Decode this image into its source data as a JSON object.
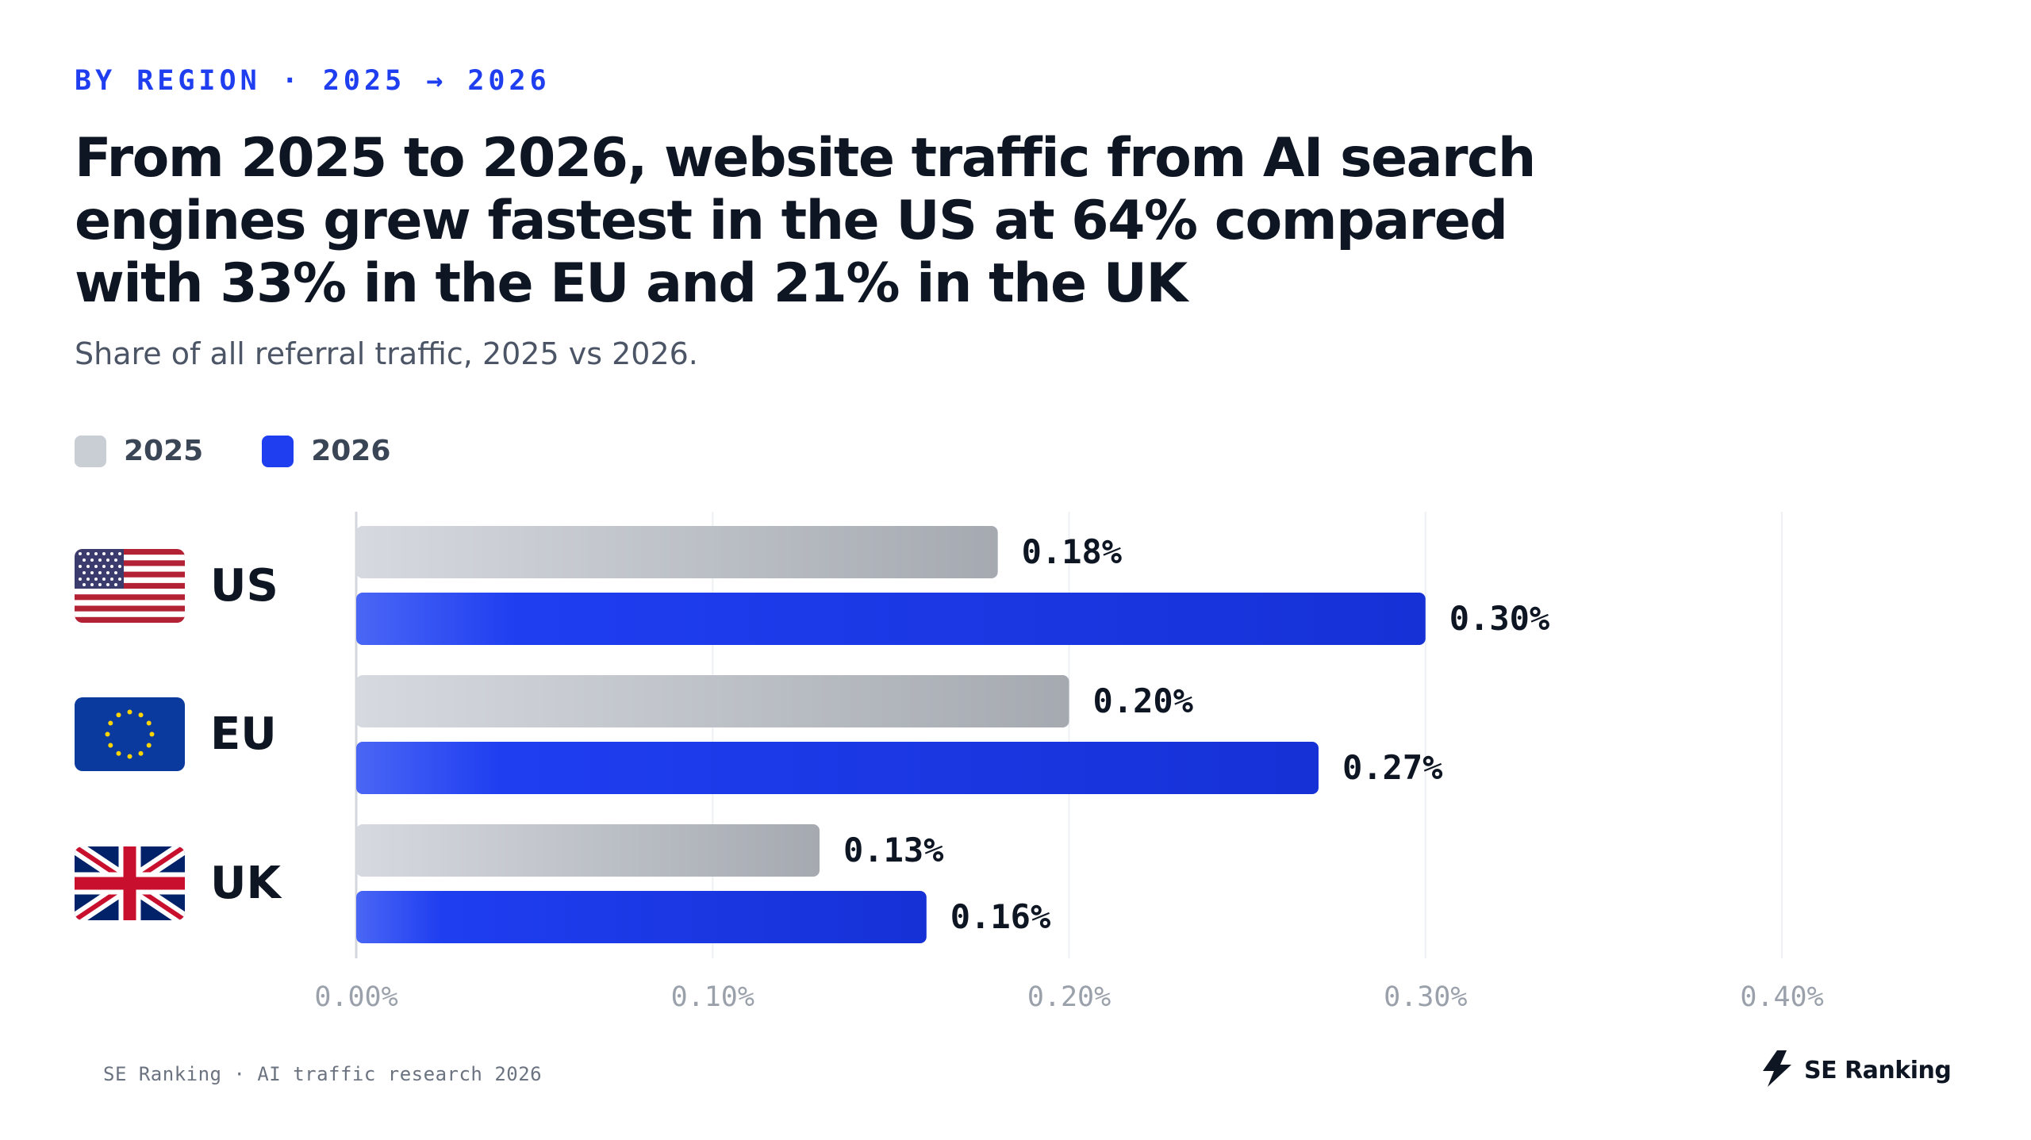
{
  "header": {
    "eyebrow": "BY REGION · 2025 → 2026",
    "title": "From 2025 to 2026, website traffic from AI search engines grew fastest in the US at 64% compared with 33% in the EU and 21% in the UK",
    "subtitle": "Share of all referral traffic, 2025 vs 2026."
  },
  "legend": [
    {
      "label": "2025",
      "color": "#c9cdd4"
    },
    {
      "label": "2026",
      "color": "#1f3ef0"
    }
  ],
  "regions": [
    {
      "code": "US",
      "flag_icon": "us-flag-icon"
    },
    {
      "code": "EU",
      "flag_icon": "eu-flag-icon"
    },
    {
      "code": "UK",
      "flag_icon": "uk-flag-icon"
    }
  ],
  "chart_data": {
    "type": "bar",
    "orientation": "horizontal",
    "categories": [
      "US",
      "EU",
      "UK"
    ],
    "series": [
      {
        "name": "2025",
        "values": [
          0.18,
          0.2,
          0.13
        ],
        "labels": [
          "0.18%",
          "0.20%",
          "0.13%"
        ],
        "color": "#c9cdd4"
      },
      {
        "name": "2026",
        "values": [
          0.3,
          0.27,
          0.16
        ],
        "labels": [
          "0.30%",
          "0.27%",
          "0.16%"
        ],
        "color": "#1f3ef0"
      }
    ],
    "xlim": [
      0,
      0.4
    ],
    "xticks": [
      0,
      0.1,
      0.2,
      0.3,
      0.4
    ],
    "xtick_labels": [
      "0.00%",
      "0.10%",
      "0.20%",
      "0.30%",
      "0.40%"
    ],
    "grid": true,
    "legend_position": "top-left"
  },
  "footer": {
    "source": "SE Ranking · AI traffic research 2026",
    "brand": "SE Ranking",
    "brand_icon": "se-ranking-logo-icon"
  }
}
